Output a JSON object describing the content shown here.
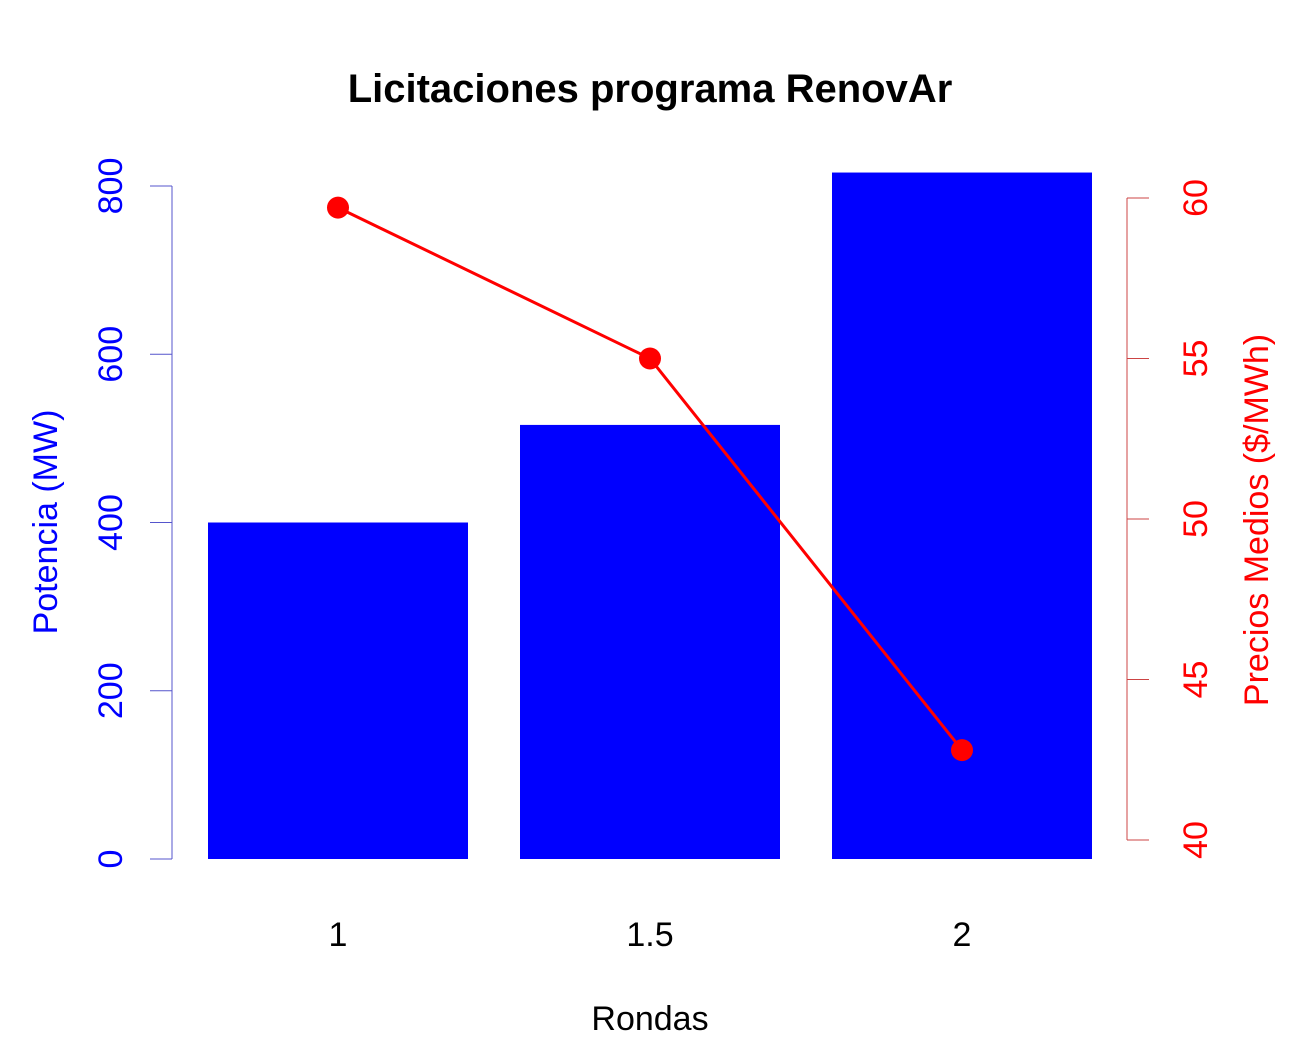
{
  "chart_data": {
    "type": "bar",
    "title": "Licitaciones programa RenovAr",
    "xlabel": "Rondas",
    "categories": [
      "1",
      "1.5",
      "2"
    ],
    "grid": false,
    "left_axis": {
      "label": "Potencia (MW)",
      "color": "#0000ff",
      "ylim": [
        0,
        800
      ],
      "ticks": [
        "0",
        "200",
        "400",
        "600",
        "800"
      ]
    },
    "right_axis": {
      "label": "Precios Medios ($/MWh)",
      "color": "#ff0000",
      "ylim": [
        40,
        60
      ],
      "ticks": [
        "40",
        "45",
        "50",
        "55",
        "60"
      ]
    },
    "series": [
      {
        "type": "bar",
        "axis": "left",
        "color": "#0000ff",
        "values": [
          400,
          516,
          816
        ]
      },
      {
        "type": "line",
        "axis": "right",
        "color": "#ff0000",
        "values": [
          59.7,
          55.0,
          42.8
        ]
      }
    ]
  }
}
